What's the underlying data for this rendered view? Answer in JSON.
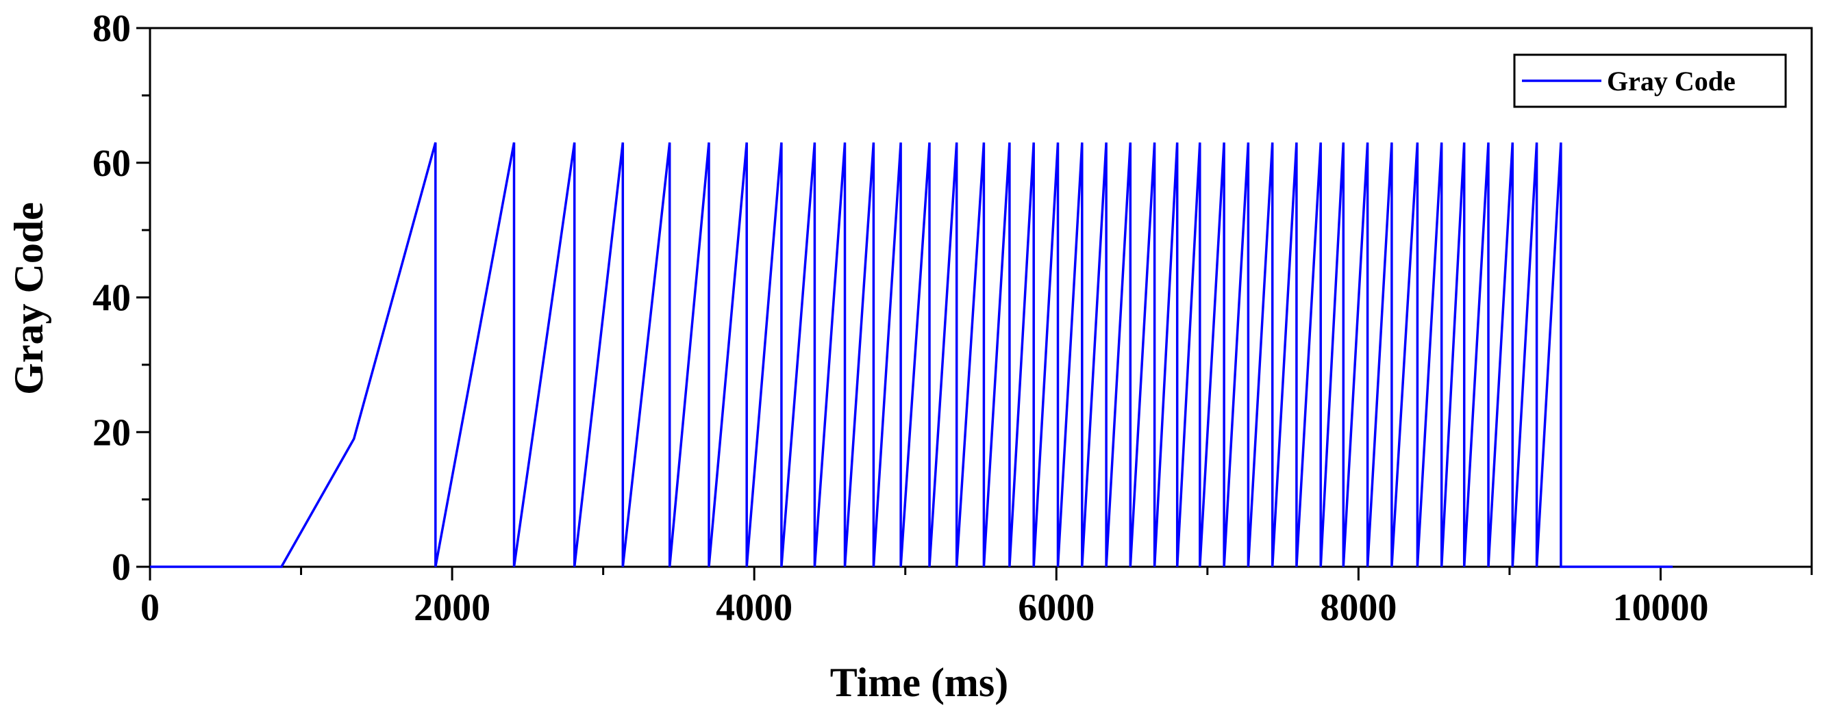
{
  "chart_data": {
    "type": "line",
    "xlabel": "Time (ms)",
    "ylabel": "Gray Code",
    "xlim": [
      0,
      11000
    ],
    "ylim": [
      0,
      80
    ],
    "x_ticks": [
      0,
      2000,
      4000,
      6000,
      8000,
      10000
    ],
    "y_ticks": [
      0,
      20,
      40,
      60,
      80
    ],
    "grid": false,
    "legend_position": "top-right",
    "series": [
      {
        "name": "Gray Code",
        "color": "#0000ff",
        "segments": {
          "baseline_start": [
            0,
            0
          ],
          "ramp_start": [
            870,
            0
          ],
          "first_ramp_knee": [
            1350,
            19
          ],
          "peak_value": 63,
          "reset_times": [
            1890,
            2410,
            2810,
            3130,
            3440,
            3700,
            3950,
            4180,
            4400,
            4600,
            4790,
            4970,
            5160,
            5340,
            5520,
            5690,
            5850,
            6010,
            6170,
            6330,
            6490,
            6650,
            6800,
            6950,
            7110,
            7270,
            7430,
            7590,
            7750,
            7900,
            8060,
            8220,
            8390,
            8550,
            8700,
            8860,
            9020,
            9180,
            9340
          ],
          "baseline_end": [
            10080,
            0
          ]
        }
      }
    ]
  }
}
